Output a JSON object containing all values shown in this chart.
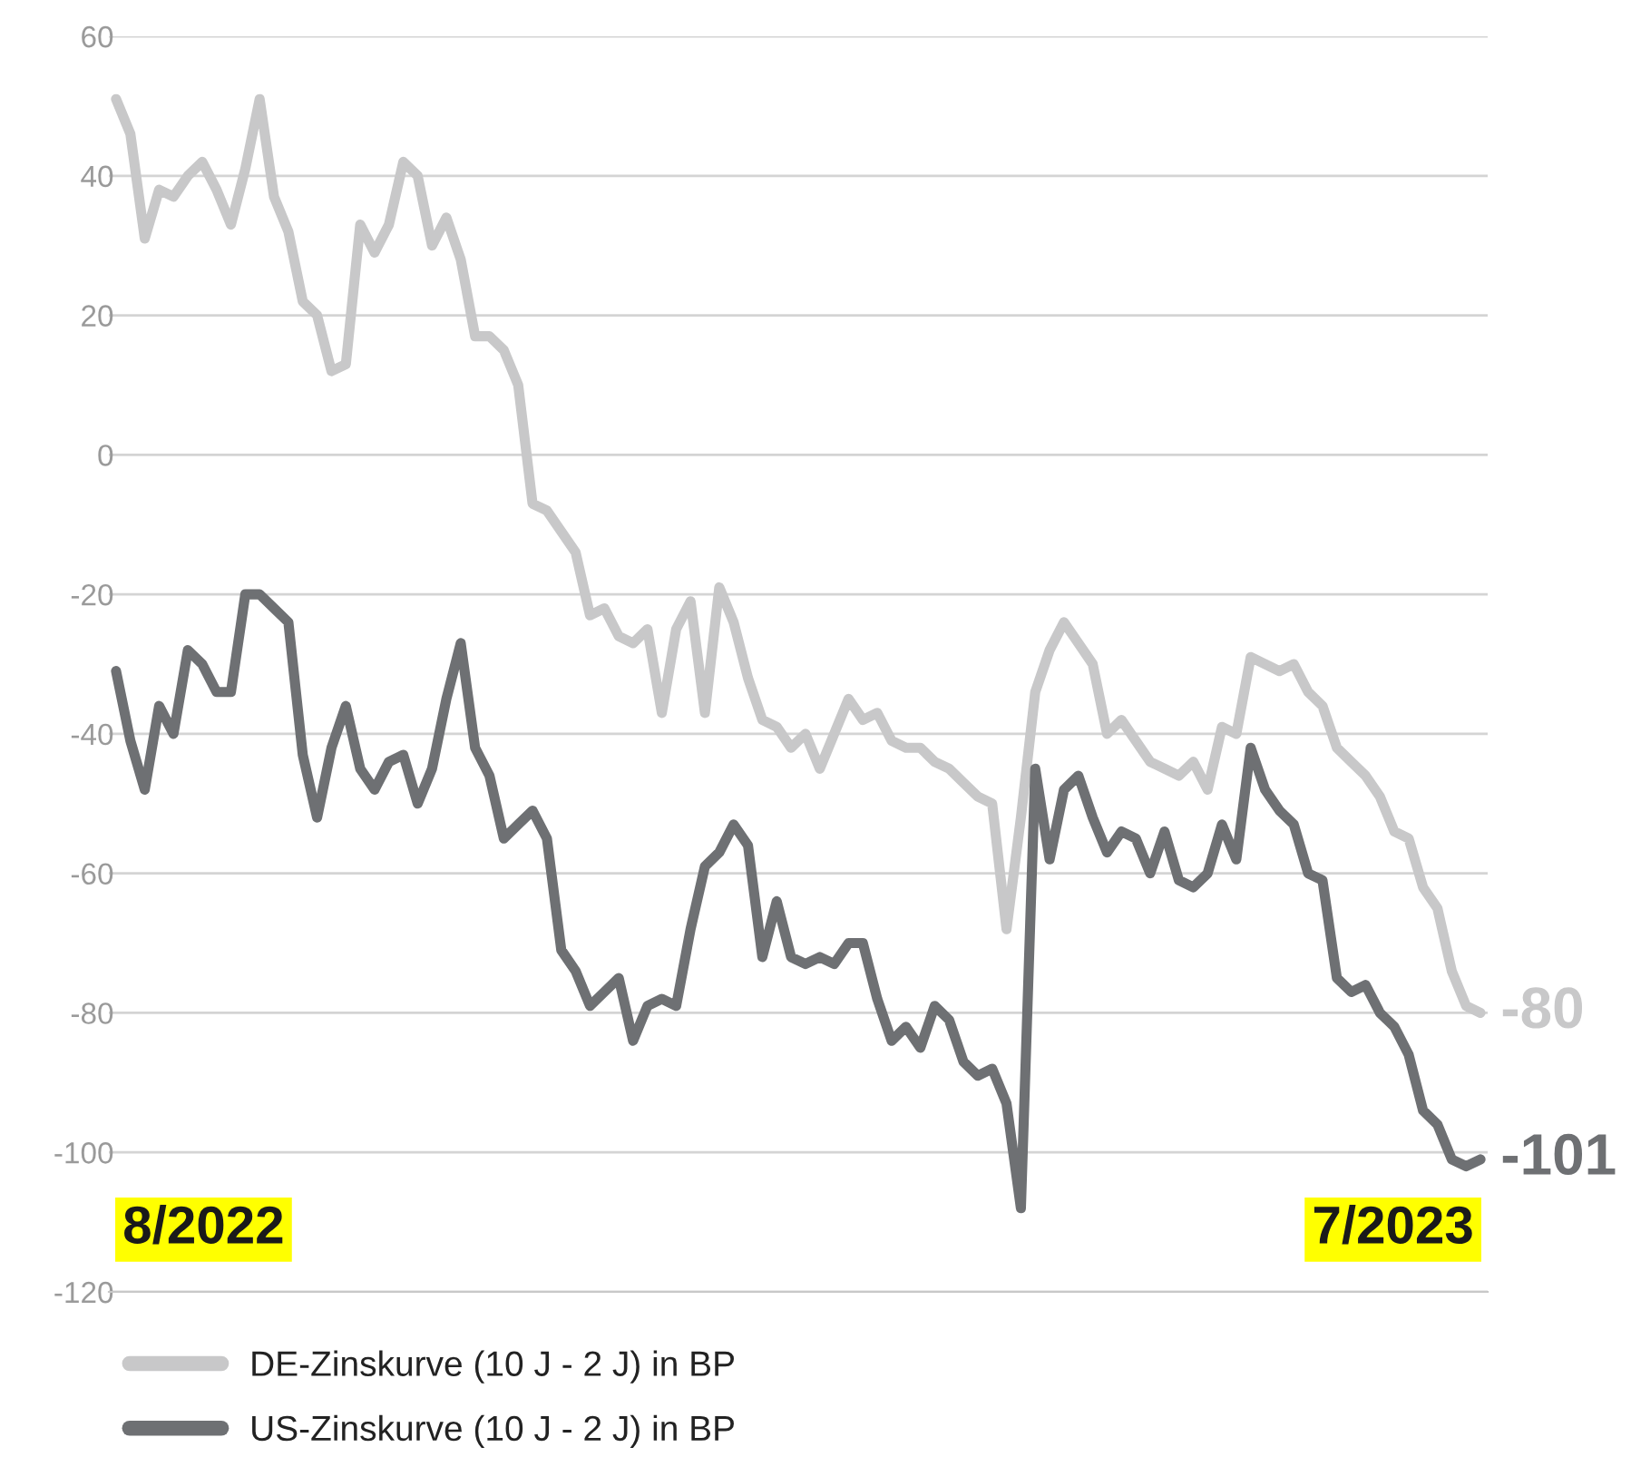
{
  "chart_data": {
    "type": "line",
    "categories": [
      null,
      null,
      null,
      null,
      null,
      null,
      null,
      null,
      null,
      null,
      null,
      null,
      null,
      null,
      null,
      null,
      null,
      null,
      null,
      null,
      null,
      null,
      null,
      null,
      null,
      null,
      null,
      null,
      null,
      null,
      null,
      null,
      null,
      null,
      null,
      null,
      null,
      null,
      null,
      null,
      null,
      null,
      null,
      null,
      null,
      null,
      null,
      null,
      null,
      null,
      null,
      null,
      null,
      null,
      null,
      null,
      null,
      null,
      null,
      null,
      null,
      null,
      null,
      null,
      null,
      null,
      null,
      null,
      null,
      null,
      null,
      null,
      null,
      null,
      null,
      null,
      null,
      null,
      null,
      null,
      null,
      null,
      null,
      null,
      null,
      null,
      null,
      null,
      null,
      null,
      null,
      null,
      null,
      null,
      null,
      null
    ],
    "series": [
      {
        "name": "DE-Zinskurve (10 J - 2 J) in BP",
        "color": "#c8c8c9",
        "values": [
          51,
          46,
          31,
          38,
          37,
          40,
          42,
          38,
          33,
          41,
          51,
          37,
          32,
          22,
          20,
          12,
          13,
          33,
          29,
          33,
          42,
          40,
          30,
          34,
          28,
          17,
          17,
          15,
          10,
          -7,
          -8,
          -11,
          -14,
          -23,
          -22,
          -26,
          -27,
          -25,
          -37,
          -25,
          -21,
          -37,
          -19,
          -24,
          -32,
          -38,
          -39,
          -42,
          -40,
          -45,
          -40,
          -35,
          -38,
          -37,
          -41,
          -42,
          -42,
          -44,
          -45,
          -47,
          -49,
          -50,
          -68,
          -52,
          -34,
          -28,
          -24,
          -27,
          -30,
          -40,
          -38,
          -41,
          -44,
          -45,
          -46,
          -44,
          -48,
          -39,
          -40,
          -29,
          -30,
          -31,
          -30,
          -34,
          -36,
          -42,
          -44,
          -46,
          -49,
          -54,
          -55,
          -62,
          -65,
          -74,
          -79,
          -80
        ],
        "value_labels": [
          null,
          null,
          null,
          null,
          null,
          null,
          null,
          null,
          null,
          null,
          null,
          null,
          null,
          null,
          null,
          null,
          null,
          null,
          null,
          null,
          null,
          null,
          null,
          null,
          null,
          null,
          null,
          null,
          null,
          null,
          null,
          null,
          null,
          null,
          null,
          null,
          null,
          null,
          null,
          null,
          null,
          null,
          null,
          null,
          null,
          null,
          null,
          null,
          null,
          null,
          null,
          null,
          null,
          null,
          null,
          null,
          null,
          null,
          null,
          null,
          null,
          null,
          null,
          null,
          null,
          null,
          null,
          null,
          null,
          null,
          null,
          null,
          null,
          null,
          null,
          null,
          null,
          null,
          null,
          null,
          null,
          null,
          null,
          null,
          null,
          null,
          null,
          null,
          null,
          null,
          null,
          null,
          null,
          null,
          null,
          "-80"
        ]
      },
      {
        "name": "US-Zinskurve (10 J - 2 J) in BP",
        "color": "#6e7073",
        "values": [
          -31,
          -41,
          -48,
          -36,
          -40,
          -28,
          -30,
          -34,
          -34,
          -20,
          -20,
          -22,
          -24,
          -43,
          -52,
          -42,
          -36,
          -45,
          -48,
          -44,
          -43,
          -50,
          -45,
          -35,
          -27,
          -42,
          -46,
          -55,
          -53,
          -51,
          -55,
          -71,
          -74,
          -79,
          -77,
          -75,
          -84,
          -79,
          -78,
          -79,
          -68,
          -59,
          -57,
          -53,
          -56,
          -72,
          -64,
          -72,
          -73,
          -72,
          -73,
          -70,
          -70,
          -78,
          -84,
          -82,
          -85,
          -79,
          -81,
          -87,
          -89,
          -88,
          -93,
          -108,
          -45,
          -58,
          -48,
          -46,
          -52,
          -57,
          -54,
          -55,
          -60,
          -54,
          -61,
          -62,
          -60,
          -53,
          -58,
          -42,
          -48,
          -51,
          -53,
          -60,
          -61,
          -75,
          -77,
          -76,
          -80,
          -82,
          -86,
          -94,
          -96,
          -101,
          -102,
          -101
        ],
        "value_labels": [
          null,
          null,
          null,
          null,
          null,
          null,
          null,
          null,
          null,
          null,
          null,
          null,
          null,
          null,
          null,
          null,
          null,
          null,
          null,
          null,
          null,
          null,
          null,
          null,
          null,
          null,
          null,
          null,
          null,
          null,
          null,
          null,
          null,
          null,
          null,
          null,
          null,
          null,
          null,
          null,
          null,
          null,
          null,
          null,
          null,
          null,
          null,
          null,
          null,
          null,
          null,
          null,
          null,
          null,
          null,
          null,
          null,
          null,
          null,
          null,
          null,
          null,
          null,
          null,
          null,
          null,
          null,
          null,
          null,
          null,
          null,
          null,
          null,
          null,
          null,
          null,
          null,
          null,
          null,
          null,
          null,
          null,
          null,
          null,
          null,
          null,
          null,
          null,
          null,
          null,
          null,
          null,
          null,
          null,
          null,
          "-101"
        ]
      }
    ],
    "ylim": [
      -120,
      60
    ],
    "yticks": [
      -120,
      -100,
      -80,
      -60,
      -40,
      -20,
      0,
      20,
      40,
      60
    ],
    "grid": "y",
    "legend": "bottom",
    "line_style": "solid",
    "annotations": [
      "8/2022",
      "7/2023"
    ]
  }
}
